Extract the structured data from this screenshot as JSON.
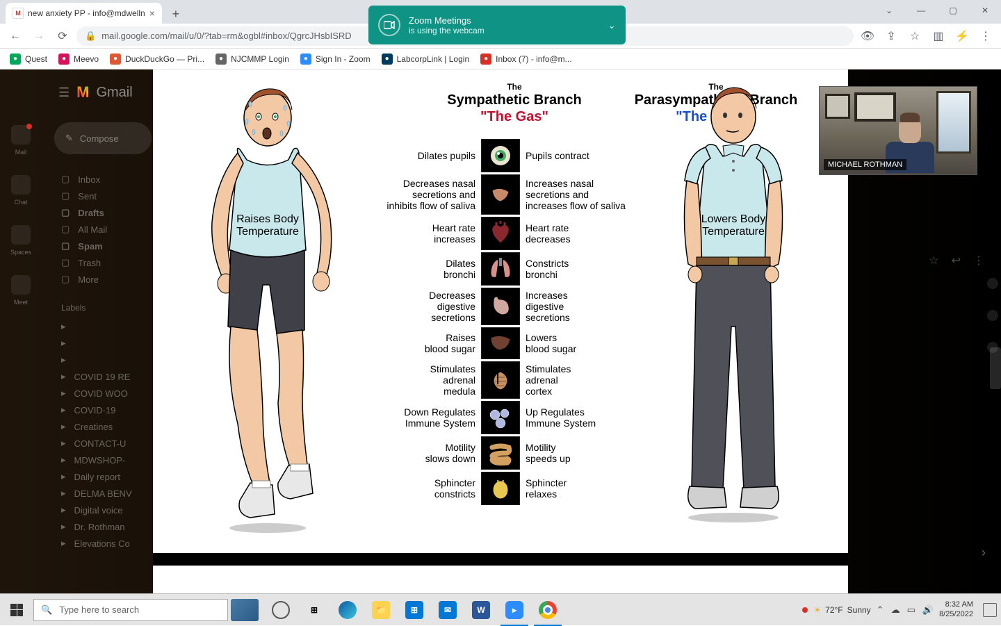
{
  "tab": {
    "title": "new anxiety PP - info@mdwelln"
  },
  "url": "mail.google.com/mail/u/0/?tab=rm&ogbl#inbox/QgrcJHsbISRD",
  "bookmarks": [
    {
      "label": "Quest",
      "color": "#00a859"
    },
    {
      "label": "Meevo",
      "color": "#d4145a"
    },
    {
      "label": "DuckDuckGo — Pri...",
      "color": "#de5833"
    },
    {
      "label": "NJCMMP Login",
      "color": "#666"
    },
    {
      "label": "Sign In - Zoom",
      "color": "#2d8cff"
    },
    {
      "label": "LabcorpLink | Login",
      "color": "#003a5d"
    },
    {
      "label": "Inbox (7) - info@m...",
      "color": "#d93025"
    }
  ],
  "zoom": {
    "title": "Zoom Meetings",
    "sub": "is using the webcam"
  },
  "gmail": {
    "logo": "Gmail",
    "compose": "Compose",
    "rail": [
      "Mail",
      "Chat",
      "Spaces",
      "Meet"
    ],
    "folders": [
      {
        "label": "Inbox",
        "bold": false
      },
      {
        "label": "Sent",
        "bold": false
      },
      {
        "label": "Drafts",
        "bold": true
      },
      {
        "label": "All Mail",
        "bold": false
      },
      {
        "label": "Spam",
        "bold": true
      },
      {
        "label": "Trash",
        "bold": false
      },
      {
        "label": "More",
        "bold": false
      }
    ],
    "labels_hdr": "Labels",
    "labels": [
      "",
      "",
      "",
      "COVID 19 RE",
      "COVID WOO",
      "COVID-19",
      "Creatines",
      "CONTACT-U",
      "MDWSHOP-",
      "Daily report",
      "DELMA BENV",
      "Digital voice",
      "Dr. Rothman",
      "Elevations Co"
    ]
  },
  "slide": {
    "left_branch": {
      "the": "The",
      "name": "Sympathetic Branch",
      "tag": "\"The Gas\"",
      "tag_color": "#c8102e"
    },
    "right_branch": {
      "the": "The",
      "name": "Parasympathetic Branch",
      "tag": "\"The Brake\"",
      "tag_color": "#1a4fc7"
    },
    "left_body_label": "Raises Body\nTemperature",
    "right_body_label": "Lowers Body\nTemperature",
    "rows": [
      {
        "l": "Dilates pupils",
        "r": "Pupils contract"
      },
      {
        "l": "Decreases nasal\nsecretions and\ninhibits flow of saliva",
        "r": "Increases nasal\nsecretions and\nincreases flow of saliva"
      },
      {
        "l": "Heart rate\nincreases",
        "r": "Heart rate\ndecreases"
      },
      {
        "l": "Dilates\nbronchi",
        "r": "Constricts\nbronchi"
      },
      {
        "l": "Decreases\ndigestive\nsecretions",
        "r": "Increases\ndigestive\nsecretions"
      },
      {
        "l": "Raises\nblood sugar",
        "r": "Lowers\nblood sugar"
      },
      {
        "l": "Stimulates\nadrenal\nmedula",
        "r": "Stimulates\nadrenal\ncortex"
      },
      {
        "l": "Down Regulates\nImmune System",
        "r": "Up Regulates\nImmune System"
      },
      {
        "l": "Motility\nslows down",
        "r": "Motility\nspeeds up"
      },
      {
        "l": "Sphincter\nconstricts",
        "r": "Sphincter\nrelaxes"
      }
    ],
    "organ_colors": {
      "eye": "#e8e4d0",
      "nose": "#c8886a",
      "heart": "#8a2830",
      "lungs": "#d89088",
      "stomach": "#d0a8a0",
      "liver": "#704030",
      "adrenal": "#c89060",
      "immune": "#b0b8e0",
      "intestine": "#d4a060",
      "bladder": "#e8c850"
    }
  },
  "webcam": {
    "name": "MICHAEL ROTHMAN"
  },
  "taskbar": {
    "search_placeholder": "Type here to search",
    "weather": {
      "temp": "72°F",
      "cond": "Sunny"
    },
    "time": "8:32 AM",
    "date": "8/25/2022"
  }
}
